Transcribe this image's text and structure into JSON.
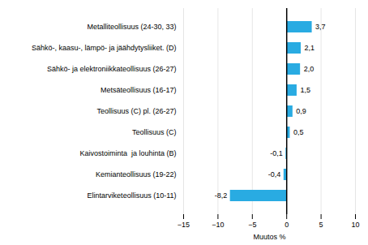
{
  "chart_data": {
    "type": "bar",
    "orientation": "horizontal",
    "categories": [
      "Elintarviketeollisuus (10-11)",
      "Kemianteollisuus (19-22)",
      "Kaivostoiminta  ja louhinta (B)",
      "Teollisuus (C)",
      "Teollisuus (C) pl. (26-27)",
      "Metsäteollisuus (16-17)",
      "Sähkö- ja elektroniikkateollisuus (26-27)",
      "Sähkö-, kaasu-, lämpö- ja jäähdytysliiket. (D)",
      "Metalliteollisuus (24-30, 33)"
    ],
    "values": [
      -8.2,
      -0.4,
      -0.1,
      0.5,
      0.9,
      1.5,
      2.0,
      2.1,
      3.7
    ],
    "value_labels": [
      "-8,2",
      "-0,4",
      "-0,1",
      "0,5",
      "0,9",
      "1,5",
      "2,0",
      "2,1",
      "3,7"
    ],
    "data_labels": true,
    "color": "#29abe2",
    "xlabel": "Muutos %",
    "xlim": [
      -15,
      10
    ],
    "xticks": [
      -15,
      -10,
      -5,
      0,
      5,
      10
    ],
    "grid": true
  }
}
